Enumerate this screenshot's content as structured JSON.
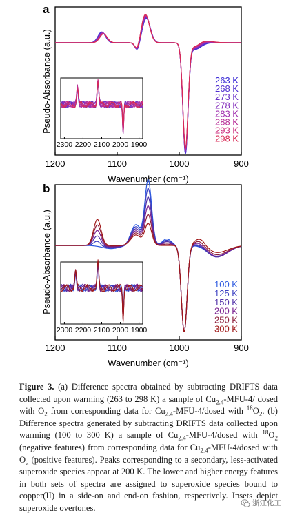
{
  "figure": {
    "panels": [
      {
        "letter": "a",
        "ylabel": "Pseudo-Absorbance (a.u.)",
        "xlabel": "Wavenumber (cm⁻¹)",
        "xticks": [
          1200,
          1100,
          1000,
          900
        ],
        "legend": [
          "263 K",
          "268 K",
          "273 K",
          "278 K",
          "283 K",
          "288 K",
          "293 K",
          "298 K"
        ],
        "colors": [
          "#3a2ad6",
          "#4f2ed0",
          "#6a30c8",
          "#8530bd",
          "#a030ae",
          "#b82f98",
          "#cc2c7c",
          "#d82a55"
        ],
        "inset_xticks": [
          2300,
          2200,
          2100,
          2000,
          1900
        ]
      },
      {
        "letter": "b",
        "ylabel": "Pseudo-Absorbance (a.u.)",
        "xlabel": "Wavenumber (cm⁻¹)",
        "xticks": [
          1200,
          1100,
          1000,
          900
        ],
        "legend": [
          "100 K",
          "125 K",
          "150 K",
          "200 K",
          "250 K",
          "300 K"
        ],
        "colors": [
          "#2b59e0",
          "#3a3fc2",
          "#5030a8",
          "#7a2090",
          "#8e1f3c",
          "#a01818"
        ],
        "inset_xticks": [
          2300,
          2200,
          2100,
          2000,
          1900
        ]
      }
    ]
  },
  "chart_data": [
    {
      "type": "line",
      "panel": "a",
      "xlabel": "Wavenumber (cm⁻¹)",
      "ylabel": "Pseudo-Absorbance (a.u.)",
      "xlim": [
        1200,
        900
      ],
      "ylim": [
        -1.0,
        0.35
      ],
      "peaks": {
        "positive": [
          {
            "x": 1125,
            "height": 0.12
          },
          {
            "x": 1055,
            "height": 0.3
          }
        ],
        "negative": [
          {
            "x": 1067,
            "depth": -0.08
          },
          {
            "x": 990,
            "depth": -0.98
          }
        ]
      },
      "series": [
        {
          "name": "263 K",
          "scale": 1.0
        },
        {
          "name": "268 K",
          "scale": 0.98
        },
        {
          "name": "273 K",
          "scale": 0.96
        },
        {
          "name": "278 K",
          "scale": 0.94
        },
        {
          "name": "283 K",
          "scale": 0.92
        },
        {
          "name": "288 K",
          "scale": 0.9
        },
        {
          "name": "293 K",
          "scale": 0.88
        },
        {
          "name": "298 K",
          "scale": 0.86
        }
      ],
      "inset": {
        "xlim": [
          2320,
          1880
        ],
        "xticks": [
          2300,
          2200,
          2100,
          2000,
          1900
        ],
        "peaks": [
          {
            "x": 2230,
            "height": 0.5
          },
          {
            "x": 2120,
            "height": 0.7
          },
          {
            "x": 1985,
            "depth": -1.0
          }
        ]
      }
    },
    {
      "type": "line",
      "panel": "b",
      "xlabel": "Wavenumber (cm⁻¹)",
      "ylabel": "Pseudo-Absorbance (a.u.)",
      "xlim": [
        1200,
        900
      ],
      "ylim": [
        -1.0,
        0.35
      ],
      "peaks": {
        "positive": [
          {
            "x": 1130,
            "height": 0.15
          },
          {
            "x": 1050,
            "height": 0.3
          }
        ],
        "negative": [
          {
            "x": 992,
            "depth": -0.95
          }
        ]
      },
      "series": [
        {
          "name": "100 K",
          "scale": 1.0
        },
        {
          "name": "125 K",
          "scale": 0.98
        },
        {
          "name": "150 K",
          "scale": 0.96
        },
        {
          "name": "200 K",
          "scale": 0.9
        },
        {
          "name": "250 K",
          "scale": 0.85
        },
        {
          "name": "300 K",
          "scale": 0.8
        }
      ],
      "inset": {
        "xlim": [
          2320,
          1880
        ],
        "xticks": [
          2300,
          2200,
          2100,
          2000,
          1900
        ],
        "peaks": [
          {
            "x": 2240,
            "height": 0.45
          },
          {
            "x": 2120,
            "height": 0.7
          },
          {
            "x": 1985,
            "depth": -1.0
          }
        ]
      }
    }
  ],
  "caption": {
    "label": "Figure 3.",
    "html": "(a) Difference spectra obtained by subtracting DRIFTS data collected upon warming (263 to 298 K) a sample of Cu<sub>2.4</sub>-MFU-4/ dosed with O<sub>2</sub> from corresponding data for Cu<sub>2.4</sub>-MFU-4/dosed with <sup>18</sup>O<sub>2</sub>. (b) Difference spectra generated by subtracting DRIFTS data collected upon warming (100 to 300 K) a sample of Cu<sub>2.4</sub>-MFU-4/dosed with <sup>18</sup>O<sub>2</sub> (negative features) from corresponding data for Cu<sub>2.4</sub>-MFU-4/dosed with O<sub>2</sub> (positive features). Peaks corresponding to a secondary, less-activated superoxide species appear at 200 K. The lower and higher energy features in both sets of spectra are assigned to superoxide species bound to copper(II) in a side-on and end-on fashion, respectively. Insets depict superoxide overtones."
  },
  "watermark": {
    "text": "浙江化工",
    "icon": "wechat-icon"
  }
}
